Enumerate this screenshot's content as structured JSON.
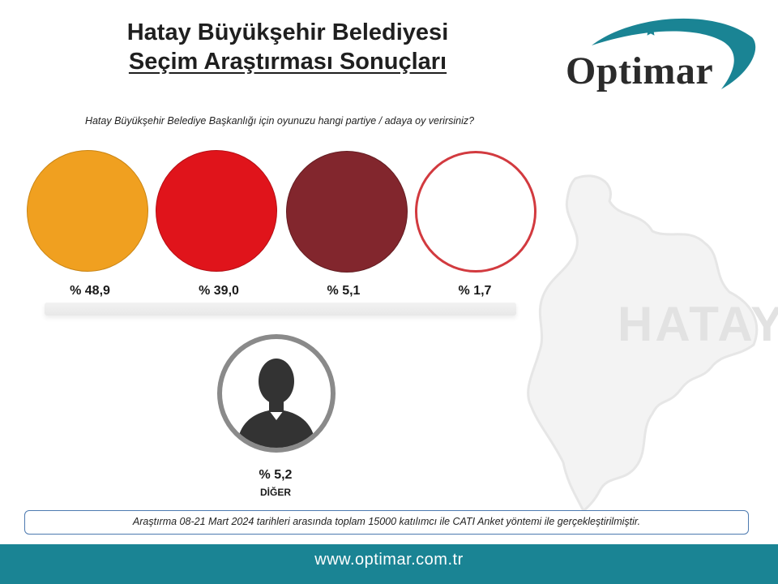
{
  "header": {
    "title_line1": "Hatay Büyükşehir Belediyesi",
    "title_line2": "Seçim Araştırması Sonuçları",
    "question": "Hatay Büyükşehir Belediye Başkanlığı için oyunuzu hangi partiye / adaya oy verirsiniz?"
  },
  "logo": {
    "text": "Optimar",
    "colors": {
      "swoosh": "#1a8494",
      "star": "#1a8494"
    }
  },
  "map": {
    "label": "HATAY"
  },
  "chart_data": {
    "type": "pie",
    "title": "Seçim Araştırması Sonuçları",
    "categories": [
      "",
      "",
      "",
      "",
      "DİĞER"
    ],
    "values": [
      48.9,
      39.0,
      5.1,
      1.7,
      5.2
    ],
    "value_labels": [
      "% 48,9",
      "% 39,0",
      "% 5,1",
      "% 1,7",
      "% 5,2"
    ],
    "colors": [
      "#f0a020",
      "#e0141b",
      "#82262d",
      "#ffffff",
      "#8a8a8a"
    ],
    "unit": "%"
  },
  "other": {
    "value_label": "% 5,2",
    "label": "DİĞER"
  },
  "footnote": "Araştırma 08-21 Mart 2024 tarihleri arasında toplam 15000 katılımcı ile CATI Anket yöntemi ile gerçekleştirilmiştir.",
  "footer": {
    "url": "www.optimar.com.tr",
    "color": "#1a8494"
  }
}
